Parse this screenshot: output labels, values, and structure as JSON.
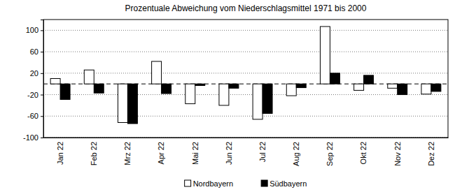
{
  "chart_data": {
    "type": "bar",
    "title": "Prozentuale Abweichung vom Niederschlagsmittel 1971 bis 2000",
    "categories": [
      "Jan 22",
      "Feb 22",
      "Mrz 22",
      "Apr 22",
      "Mai 22",
      "Jun 22",
      "Jul 22",
      "Aug 22",
      "Sep 22",
      "Okt 22",
      "Nov 22",
      "Dez 22"
    ],
    "series": [
      {
        "name": "Nordbayern",
        "color": "#ffffff",
        "values": [
          10,
          26,
          -72,
          42,
          -37,
          -40,
          -66,
          -22,
          107,
          -12,
          -8,
          -19
        ]
      },
      {
        "name": "Südbayern",
        "color": "#000000",
        "values": [
          -29,
          -17,
          -74,
          -18,
          -3,
          -8,
          -55,
          -7,
          20,
          16,
          -20,
          -14
        ]
      }
    ],
    "ylim": [
      -100,
      120
    ],
    "yticks": [
      -100,
      -60,
      -20,
      20,
      60,
      100
    ],
    "grid": true,
    "legend": "bottom"
  }
}
